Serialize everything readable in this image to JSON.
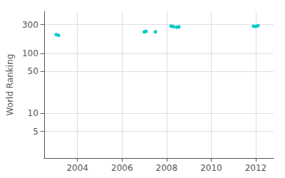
{
  "chart_data": {
    "type": "line",
    "ylabel": "World Ranking",
    "color": "#00cccc",
    "marker": "circle",
    "series": [
      {
        "x": [
          2003.05,
          2003.15
        ],
        "values": [
          205,
          200
        ]
      },
      {
        "x": [
          2007.0,
          2007.08
        ],
        "values": [
          228,
          232
        ]
      },
      {
        "x": [
          2007.5
        ],
        "values": [
          228
        ]
      },
      {
        "x": [
          2008.2,
          2008.3,
          2008.45,
          2008.55
        ],
        "values": [
          285,
          278,
          272,
          276
        ]
      },
      {
        "x": [
          2011.9,
          2012.0,
          2012.1
        ],
        "values": [
          283,
          280,
          290
        ]
      }
    ],
    "xlim": [
      2002.5,
      2012.8
    ],
    "ylim": [
      1.8,
      500
    ],
    "xticks": [
      2004,
      2006,
      2008,
      2010,
      2012
    ],
    "yticks": [
      5,
      10,
      50,
      100,
      300
    ],
    "log": "y",
    "grid": true
  }
}
